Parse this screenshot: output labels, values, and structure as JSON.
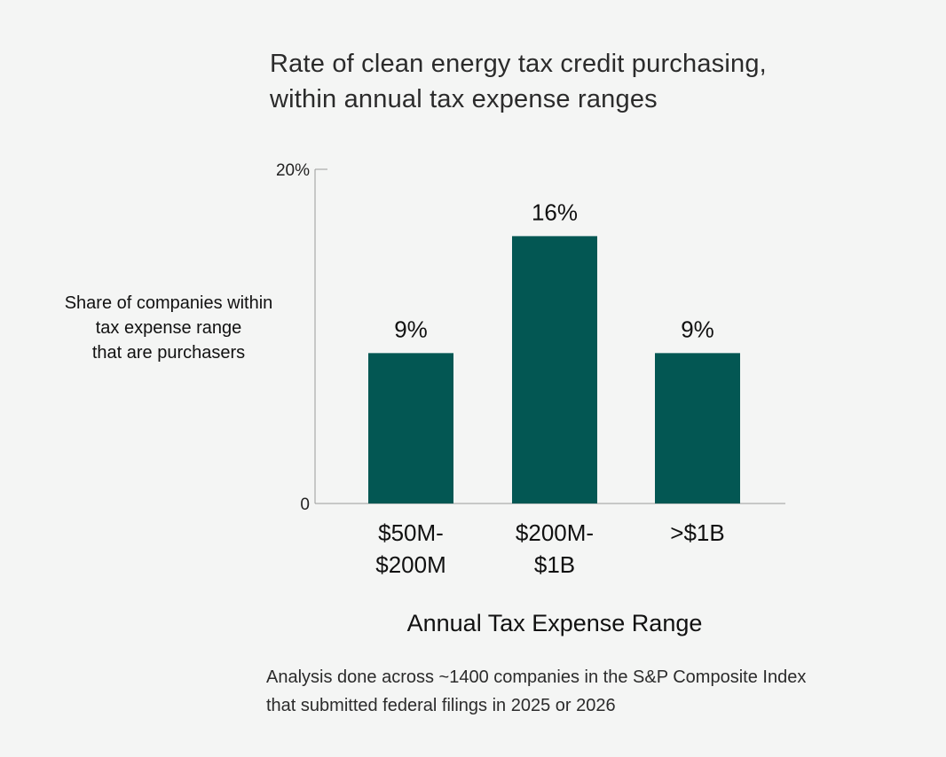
{
  "chart_data": {
    "type": "bar",
    "title_lines": [
      "Rate of clean energy tax credit purchasing,",
      "within annual tax expense ranges"
    ],
    "ylabel_lines": [
      "Share of companies within",
      "tax expense range",
      "that are purchasers"
    ],
    "xlabel": "Annual Tax Expense Range",
    "categories": [
      [
        "$50M-",
        "$200M"
      ],
      [
        "$200M-",
        "$1B"
      ],
      [
        ">$1B"
      ]
    ],
    "values": [
      9,
      16,
      9
    ],
    "data_labels": [
      "9%",
      "16%",
      "9%"
    ],
    "ylim": [
      0,
      20
    ],
    "yticks": [
      {
        "value": 0,
        "label": "0"
      },
      {
        "value": 20,
        "label": "20%"
      }
    ],
    "bar_color": "#035753",
    "grid": false
  },
  "footnote_lines": [
    "Analysis done across ~1400 companies in the S&P Composite Index",
    "that submitted federal filings in 2025 or 2026"
  ]
}
